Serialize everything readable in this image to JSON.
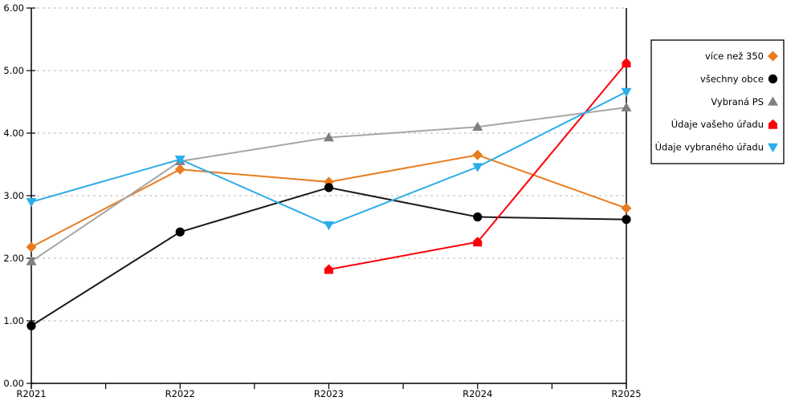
{
  "chart_data": {
    "type": "line",
    "title": "",
    "xlabel": "",
    "ylabel": "",
    "categories": [
      "R2021",
      "R2022",
      "R2023",
      "R2024",
      "R2025"
    ],
    "series": [
      {
        "name": "více než 350",
        "marker": "diamond",
        "line_color": "#E87C1F",
        "marker_color": "#E87C1F",
        "values": [
          2.18,
          3.42,
          3.22,
          3.65,
          2.8
        ]
      },
      {
        "name": "všechny obce",
        "marker": "circle",
        "line_color": "#1A1A1A",
        "marker_color": "#000000",
        "values": [
          0.92,
          2.42,
          3.13,
          2.66,
          2.62
        ]
      },
      {
        "name": "Vybraná PS",
        "marker": "triangle-up",
        "line_color": "#A6A6A6",
        "marker_color": "#7F7F7F",
        "values": [
          1.95,
          3.55,
          3.93,
          4.1,
          4.41
        ]
      },
      {
        "name": "Údaje vašeho úřadu",
        "marker": "pentagon",
        "line_color": "#FA0008",
        "marker_color": "#FA0008",
        "values": [
          null,
          null,
          1.82,
          2.26,
          5.12
        ]
      },
      {
        "name": "Údaje vybraného úřadu",
        "marker": "triangle-down",
        "line_color": "#2BADE8",
        "marker_color": "#2BADE8",
        "values": [
          2.9,
          3.58,
          2.53,
          3.46,
          4.66
        ]
      }
    ],
    "ylim": [
      0,
      6
    ],
    "ytick_step": 1,
    "ytick_labels": [
      "0.00",
      "1.00",
      "2.00",
      "3.00",
      "4.00",
      "5.00",
      "6.00"
    ],
    "grid": "horizontal-dashed",
    "legend_position": "right-outside"
  },
  "colors": {
    "background": "#FFFFFF",
    "axis": "#000000",
    "gridline": "#C8C8C8",
    "legend_border": "#000000",
    "legend_background": "#FFFFFF"
  }
}
